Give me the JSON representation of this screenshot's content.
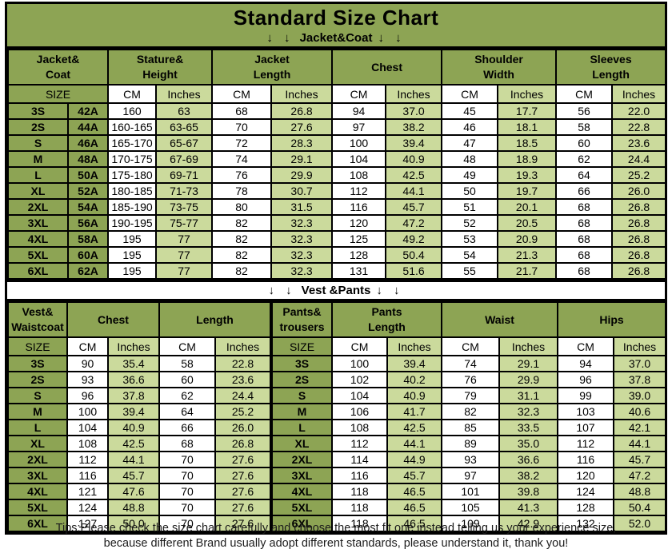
{
  "title": "Standard Size Chart",
  "arrows": "↓ ↓",
  "colors": {
    "olive_green": "#8DA454",
    "light_green": "#CBDA9C",
    "border": "#000000",
    "text": "#000000"
  },
  "chart_data": [
    {
      "type": "table",
      "banner_label": "Jacket&Coat",
      "group_headers": [
        {
          "lines": [
            "Jacket&",
            "Coat"
          ],
          "span": 2
        },
        {
          "lines": [
            "Stature&",
            "Height"
          ],
          "span": 2
        },
        {
          "lines": [
            "Jacket",
            "Length"
          ],
          "span": 2
        },
        {
          "lines": [
            "Chest"
          ],
          "span": 2
        },
        {
          "lines": [
            "Shoulder",
            "Width"
          ],
          "span": 2
        },
        {
          "lines": [
            "Sleeves",
            "Length"
          ],
          "span": 2
        }
      ],
      "subheader": [
        {
          "label": "SIZE",
          "span": 2,
          "type": "size"
        },
        {
          "label": "CM",
          "span": 1,
          "type": "cm"
        },
        {
          "label": "Inches",
          "span": 1,
          "type": "in"
        },
        {
          "label": "CM",
          "span": 1,
          "type": "cm"
        },
        {
          "label": "Inches",
          "span": 1,
          "type": "in"
        },
        {
          "label": "CM",
          "span": 1,
          "type": "cm"
        },
        {
          "label": "Inches",
          "span": 1,
          "type": "in"
        },
        {
          "label": "CM",
          "span": 1,
          "type": "cm"
        },
        {
          "label": "Inches",
          "span": 1,
          "type": "in"
        },
        {
          "label": "CM",
          "span": 1,
          "type": "cm"
        },
        {
          "label": "Inches",
          "span": 1,
          "type": "in"
        }
      ],
      "rows": [
        [
          "3S",
          "42A",
          "160",
          "63",
          "68",
          "26.8",
          "94",
          "37.0",
          "45",
          "17.7",
          "56",
          "22.0"
        ],
        [
          "2S",
          "44A",
          "160-165",
          "63-65",
          "70",
          "27.6",
          "97",
          "38.2",
          "46",
          "18.1",
          "58",
          "22.8"
        ],
        [
          "S",
          "46A",
          "165-170",
          "65-67",
          "72",
          "28.3",
          "100",
          "39.4",
          "47",
          "18.5",
          "60",
          "23.6"
        ],
        [
          "M",
          "48A",
          "170-175",
          "67-69",
          "74",
          "29.1",
          "104",
          "40.9",
          "48",
          "18.9",
          "62",
          "24.4"
        ],
        [
          "L",
          "50A",
          "175-180",
          "69-71",
          "76",
          "29.9",
          "108",
          "42.5",
          "49",
          "19.3",
          "64",
          "25.2"
        ],
        [
          "XL",
          "52A",
          "180-185",
          "71-73",
          "78",
          "30.7",
          "112",
          "44.1",
          "50",
          "19.7",
          "66",
          "26.0"
        ],
        [
          "2XL",
          "54A",
          "185-190",
          "73-75",
          "80",
          "31.5",
          "116",
          "45.7",
          "51",
          "20.1",
          "68",
          "26.8"
        ],
        [
          "3XL",
          "56A",
          "190-195",
          "75-77",
          "82",
          "32.3",
          "120",
          "47.2",
          "52",
          "20.5",
          "68",
          "26.8"
        ],
        [
          "4XL",
          "58A",
          "195",
          "77",
          "82",
          "32.3",
          "125",
          "49.2",
          "53",
          "20.9",
          "68",
          "26.8"
        ],
        [
          "5XL",
          "60A",
          "195",
          "77",
          "82",
          "32.3",
          "128",
          "50.4",
          "54",
          "21.3",
          "68",
          "26.8"
        ],
        [
          "6XL",
          "62A",
          "195",
          "77",
          "82",
          "32.3",
          "131",
          "51.6",
          "55",
          "21.7",
          "68",
          "26.8"
        ]
      ]
    },
    {
      "type": "table",
      "banner_label": "Vest &Pants",
      "group_headers": [
        {
          "lines": [
            "Vest&",
            "Waistcoat"
          ],
          "span": 1
        },
        {
          "lines": [
            "Chest"
          ],
          "span": 2
        },
        {
          "lines": [
            "Length"
          ],
          "span": 2
        },
        {
          "lines": [
            "Pants&",
            "trousers"
          ],
          "span": 1
        },
        {
          "lines": [
            "Pants",
            "Length"
          ],
          "span": 2
        },
        {
          "lines": [
            "Waist"
          ],
          "span": 2
        },
        {
          "lines": [
            "Hips"
          ],
          "span": 2
        }
      ],
      "subheader": [
        {
          "label": "SIZE",
          "span": 1,
          "type": "size"
        },
        {
          "label": "CM",
          "span": 1,
          "type": "cm"
        },
        {
          "label": "Inches",
          "span": 1,
          "type": "in"
        },
        {
          "label": "CM",
          "span": 1,
          "type": "cm"
        },
        {
          "label": "Inches",
          "span": 1,
          "type": "in"
        },
        {
          "label": "SIZE",
          "span": 1,
          "type": "size"
        },
        {
          "label": "CM",
          "span": 1,
          "type": "cm"
        },
        {
          "label": "Inches",
          "span": 1,
          "type": "in"
        },
        {
          "label": "CM",
          "span": 1,
          "type": "cm"
        },
        {
          "label": "Inches",
          "span": 1,
          "type": "in"
        },
        {
          "label": "CM",
          "span": 1,
          "type": "cm"
        },
        {
          "label": "Inches",
          "span": 1,
          "type": "in"
        }
      ],
      "rows": [
        [
          "3S",
          "90",
          "35.4",
          "58",
          "22.8",
          "3S",
          "100",
          "39.4",
          "74",
          "29.1",
          "94",
          "37.0"
        ],
        [
          "2S",
          "93",
          "36.6",
          "60",
          "23.6",
          "2S",
          "102",
          "40.2",
          "76",
          "29.9",
          "96",
          "37.8"
        ],
        [
          "S",
          "96",
          "37.8",
          "62",
          "24.4",
          "S",
          "104",
          "40.9",
          "79",
          "31.1",
          "99",
          "39.0"
        ],
        [
          "M",
          "100",
          "39.4",
          "64",
          "25.2",
          "M",
          "106",
          "41.7",
          "82",
          "32.3",
          "103",
          "40.6"
        ],
        [
          "L",
          "104",
          "40.9",
          "66",
          "26.0",
          "L",
          "108",
          "42.5",
          "85",
          "33.5",
          "107",
          "42.1"
        ],
        [
          "XL",
          "108",
          "42.5",
          "68",
          "26.8",
          "XL",
          "112",
          "44.1",
          "89",
          "35.0",
          "112",
          "44.1"
        ],
        [
          "2XL",
          "112",
          "44.1",
          "70",
          "27.6",
          "2XL",
          "114",
          "44.9",
          "93",
          "36.6",
          "116",
          "45.7"
        ],
        [
          "3XL",
          "116",
          "45.7",
          "70",
          "27.6",
          "3XL",
          "116",
          "45.7",
          "97",
          "38.2",
          "120",
          "47.2"
        ],
        [
          "4XL",
          "121",
          "47.6",
          "70",
          "27.6",
          "4XL",
          "118",
          "46.5",
          "101",
          "39.8",
          "124",
          "48.8"
        ],
        [
          "5XL",
          "124",
          "48.8",
          "70",
          "27.6",
          "5XL",
          "118",
          "46.5",
          "105",
          "41.3",
          "128",
          "50.4"
        ],
        [
          "6XL",
          "127",
          "50.0",
          "70",
          "27.6",
          "6XL",
          "118",
          "46.5",
          "109",
          "42.9",
          "132",
          "52.0"
        ]
      ]
    }
  ],
  "tips": {
    "line1": "Tips:Please check the size chart carefully and choose the most fit one instead telling us your experience size,",
    "line2": "because different Brand usually adopt different standards, please understand it, thank you!"
  }
}
